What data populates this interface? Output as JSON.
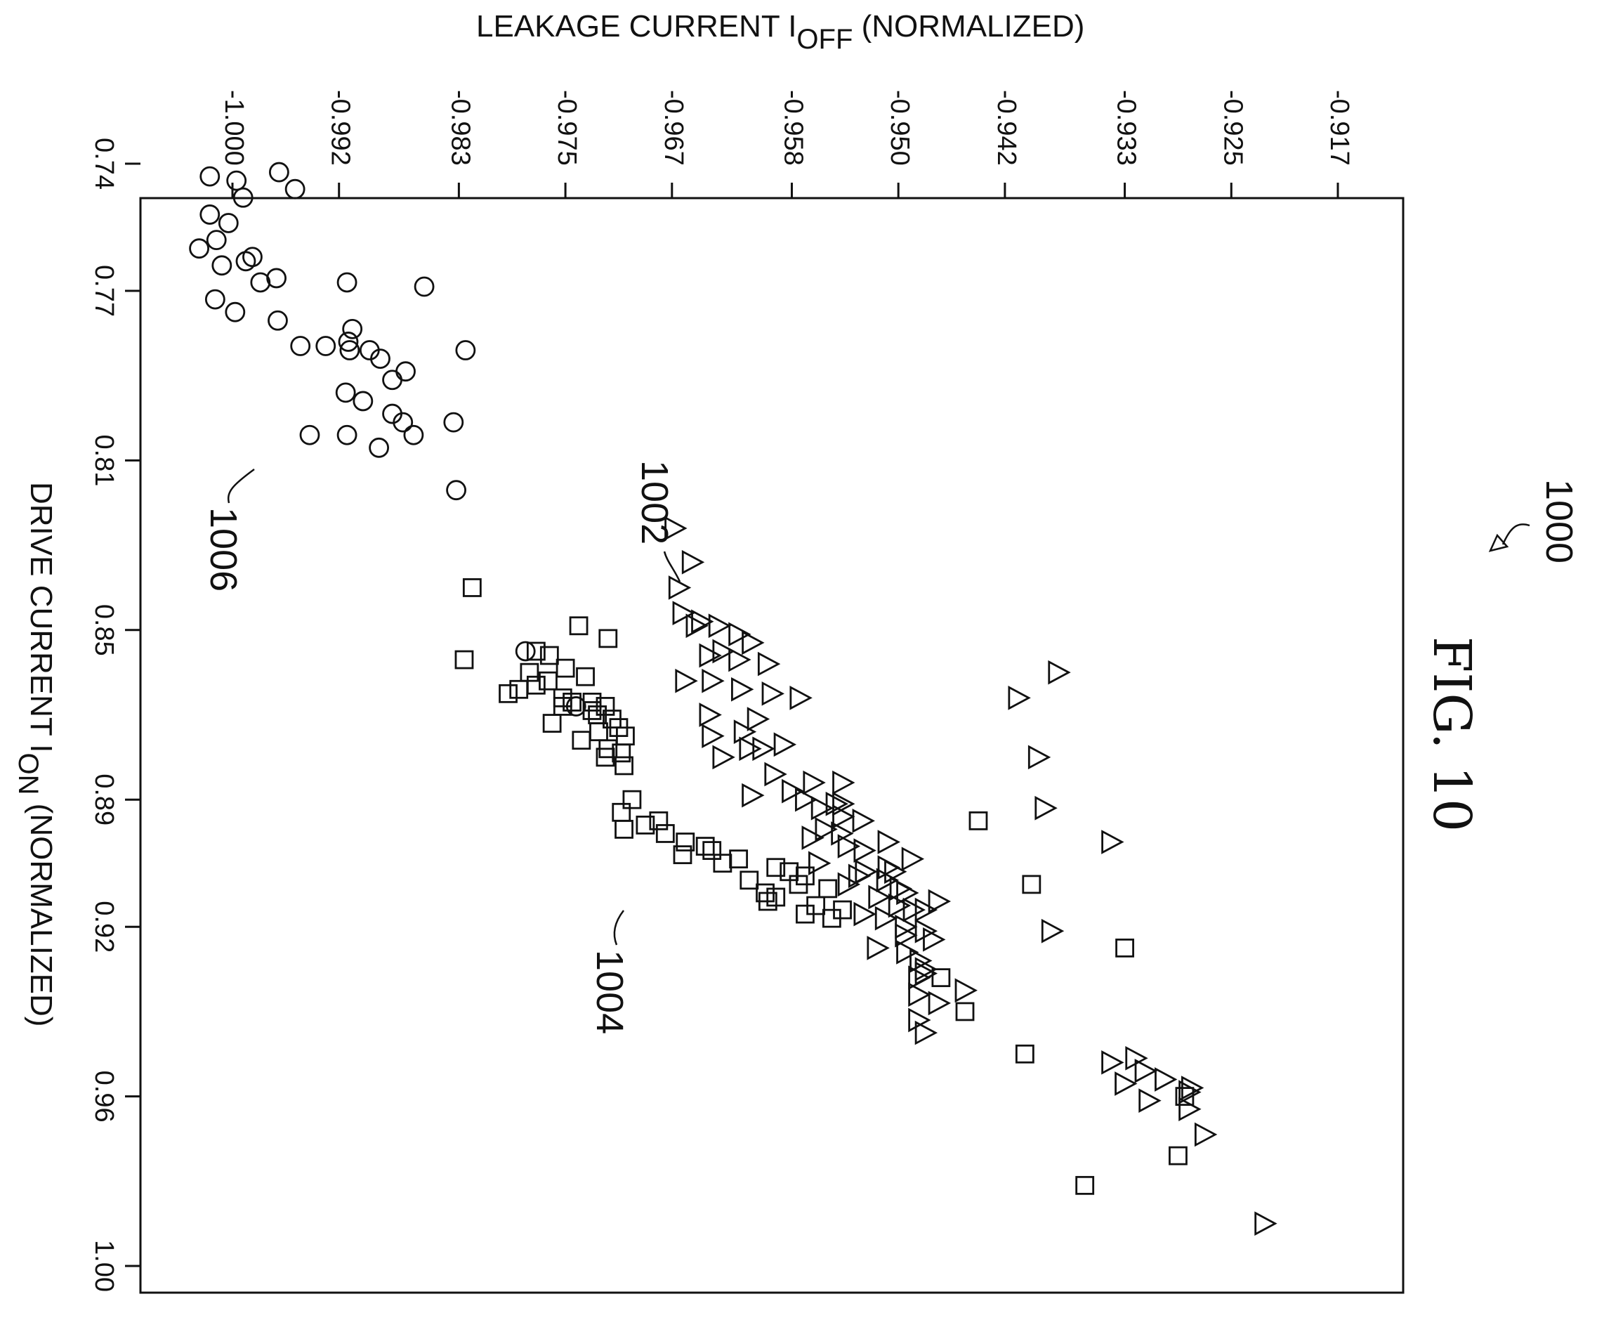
{
  "figure": {
    "label": "FIG. 10",
    "ref_number": "1000"
  },
  "chart_data": {
    "type": "scatter",
    "title": "",
    "xlabel": "DRIVE CURRENT I",
    "xlabel_sub": "ON",
    "xlabel_suffix": " (NORMALIZED)",
    "ylabel": "LEAKAGE CURRENT I",
    "ylabel_sub": "OFF",
    "ylabel_suffix": " (NORMALIZED)",
    "xlim": [
      0.73,
      1.0
    ],
    "ylim": [
      -1.0,
      -0.917
    ],
    "x_ticks": [
      {
        "value": 0.74,
        "label": "0.74"
      },
      {
        "value": 0.77,
        "label": "0.77"
      },
      {
        "value": 0.81,
        "label": "0.81"
      },
      {
        "value": 0.85,
        "label": "0.85"
      },
      {
        "value": 0.89,
        "label": "0.89"
      },
      {
        "value": 0.92,
        "label": "0.92"
      },
      {
        "value": 0.96,
        "label": "0.96"
      },
      {
        "value": 1.0,
        "label": "1.00"
      }
    ],
    "y_ticks": [
      {
        "value": -1.0,
        "label": "-1.000"
      },
      {
        "value": -0.992,
        "label": "-0.992"
      },
      {
        "value": -0.983,
        "label": "-0.983"
      },
      {
        "value": -0.975,
        "label": "-0.975"
      },
      {
        "value": -0.967,
        "label": "-0.967"
      },
      {
        "value": -0.958,
        "label": "-0.958"
      },
      {
        "value": -0.95,
        "label": "-0.950"
      },
      {
        "value": -0.942,
        "label": "-0.942"
      },
      {
        "value": -0.933,
        "label": "-0.933"
      },
      {
        "value": -0.925,
        "label": "-0.925"
      },
      {
        "value": -0.917,
        "label": "-0.917"
      }
    ],
    "grid": false,
    "legend": "none",
    "series": [
      {
        "ref": "1002",
        "marker": "triangle",
        "points": [
          [
            0.826,
            -0.9668
          ],
          [
            0.834,
            -0.9655
          ],
          [
            0.84,
            -0.9665
          ],
          [
            0.846,
            -0.9662
          ],
          [
            0.848,
            -0.9648
          ],
          [
            0.849,
            -0.9635
          ],
          [
            0.849,
            -0.9652
          ],
          [
            0.851,
            -0.962
          ],
          [
            0.853,
            -0.961
          ],
          [
            0.855,
            -0.9632
          ],
          [
            0.856,
            -0.9642
          ],
          [
            0.857,
            -0.962
          ],
          [
            0.858,
            -0.9598
          ],
          [
            0.862,
            -0.966
          ],
          [
            0.862,
            -0.964
          ],
          [
            0.864,
            -0.9618
          ],
          [
            0.865,
            -0.9595
          ],
          [
            0.866,
            -0.9574
          ],
          [
            0.87,
            -0.9642
          ],
          [
            0.871,
            -0.9606
          ],
          [
            0.874,
            -0.9616
          ],
          [
            0.875,
            -0.964
          ],
          [
            0.877,
            -0.9586
          ],
          [
            0.878,
            -0.9602
          ],
          [
            0.878,
            -0.9612
          ],
          [
            0.88,
            -0.9632
          ],
          [
            0.884,
            -0.9593
          ],
          [
            0.886,
            -0.9564
          ],
          [
            0.886,
            -0.9542
          ],
          [
            0.888,
            -0.958
          ],
          [
            0.889,
            -0.961
          ],
          [
            0.89,
            -0.957
          ],
          [
            0.891,
            -0.9547
          ],
          [
            0.891,
            -0.9542
          ],
          [
            0.892,
            -0.9558
          ],
          [
            0.894,
            -0.9542
          ],
          [
            0.895,
            -0.9527
          ],
          [
            0.897,
            -0.9555
          ],
          [
            0.898,
            -0.9543
          ],
          [
            0.899,
            -0.9565
          ],
          [
            0.9,
            -0.9508
          ],
          [
            0.901,
            -0.9538
          ],
          [
            0.902,
            -0.9526
          ],
          [
            0.904,
            -0.949
          ],
          [
            0.905,
            -0.956
          ],
          [
            0.906,
            -0.9508
          ],
          [
            0.907,
            -0.9525
          ],
          [
            0.907,
            -0.9503
          ],
          [
            0.908,
            -0.953
          ],
          [
            0.909,
            -0.9509
          ],
          [
            0.91,
            -0.9538
          ],
          [
            0.911,
            -0.9499
          ],
          [
            0.912,
            -0.9494
          ],
          [
            0.913,
            -0.9515
          ],
          [
            0.914,
            -0.947
          ],
          [
            0.915,
            -0.95
          ],
          [
            0.916,
            -0.948
          ],
          [
            0.916,
            -0.9489
          ],
          [
            0.917,
            -0.9526
          ],
          [
            0.918,
            -0.951
          ],
          [
            0.92,
            -0.9495
          ],
          [
            0.921,
            -0.948
          ],
          [
            0.922,
            -0.9495
          ],
          [
            0.923,
            -0.9474
          ],
          [
            0.925,
            -0.9516
          ],
          [
            0.926,
            -0.9494
          ],
          [
            0.928,
            -0.9484
          ],
          [
            0.93,
            -0.948
          ],
          [
            0.931,
            -0.948
          ],
          [
            0.932,
            -0.9485
          ],
          [
            0.935,
            -0.945
          ],
          [
            0.936,
            -0.9485
          ],
          [
            0.938,
            -0.947
          ],
          [
            0.942,
            -0.9485
          ],
          [
            0.945,
            -0.948
          ],
          [
            0.86,
            -0.938
          ],
          [
            0.866,
            -0.941
          ],
          [
            0.88,
            -0.9395
          ],
          [
            0.892,
            -0.939
          ],
          [
            0.9,
            -0.934
          ],
          [
            0.921,
            -0.9385
          ],
          [
            0.951,
            -0.9322
          ],
          [
            0.952,
            -0.934
          ],
          [
            0.954,
            -0.9315
          ],
          [
            0.956,
            -0.93
          ],
          [
            0.957,
            -0.933
          ],
          [
            0.958,
            -0.928
          ],
          [
            0.959,
            -0.9282
          ],
          [
            0.961,
            -0.9312
          ],
          [
            0.963,
            -0.9282
          ],
          [
            0.969,
            -0.927
          ],
          [
            0.99,
            -0.9225
          ]
        ]
      },
      {
        "ref": "1004",
        "marker": "square",
        "points": [
          [
            0.84,
            -0.982
          ],
          [
            0.849,
            -0.974
          ],
          [
            0.852,
            -0.9718
          ],
          [
            0.855,
            -0.9772
          ],
          [
            0.856,
            -0.9762
          ],
          [
            0.857,
            -0.9826
          ],
          [
            0.859,
            -0.975
          ],
          [
            0.86,
            -0.9777
          ],
          [
            0.861,
            -0.9735
          ],
          [
            0.862,
            -0.9763
          ],
          [
            0.863,
            -0.9772
          ],
          [
            0.864,
            -0.9785
          ],
          [
            0.865,
            -0.9793
          ],
          [
            0.866,
            -0.9752
          ],
          [
            0.867,
            -0.9745
          ],
          [
            0.867,
            -0.973
          ],
          [
            0.868,
            -0.972
          ],
          [
            0.868,
            -0.9752
          ],
          [
            0.869,
            -0.973
          ],
          [
            0.87,
            -0.9726
          ],
          [
            0.871,
            -0.9715
          ],
          [
            0.872,
            -0.976
          ],
          [
            0.873,
            -0.971
          ],
          [
            0.874,
            -0.9725
          ],
          [
            0.875,
            -0.9705
          ],
          [
            0.876,
            -0.9738
          ],
          [
            0.878,
            -0.9718
          ],
          [
            0.879,
            -0.9708
          ],
          [
            0.88,
            -0.972
          ],
          [
            0.882,
            -0.9706
          ],
          [
            0.89,
            -0.97
          ],
          [
            0.893,
            -0.9708
          ],
          [
            0.895,
            -0.968
          ],
          [
            0.896,
            -0.969
          ],
          [
            0.897,
            -0.9706
          ],
          [
            0.898,
            -0.9675
          ],
          [
            0.9,
            -0.966
          ],
          [
            0.901,
            -0.9645
          ],
          [
            0.902,
            -0.964
          ],
          [
            0.903,
            -0.9662
          ],
          [
            0.904,
            -0.962
          ],
          [
            0.905,
            -0.9632
          ],
          [
            0.906,
            -0.9592
          ],
          [
            0.907,
            -0.9582
          ],
          [
            0.908,
            -0.957
          ],
          [
            0.909,
            -0.9612
          ],
          [
            0.91,
            -0.9575
          ],
          [
            0.911,
            -0.9553
          ],
          [
            0.912,
            -0.96
          ],
          [
            0.913,
            -0.9592
          ],
          [
            0.914,
            -0.9598
          ],
          [
            0.915,
            -0.9562
          ],
          [
            0.916,
            -0.9542
          ],
          [
            0.917,
            -0.957
          ],
          [
            0.918,
            -0.955
          ],
          [
            0.895,
            -0.944
          ],
          [
            0.91,
            -0.94
          ],
          [
            0.925,
            -0.933
          ],
          [
            0.932,
            -0.9468
          ],
          [
            0.94,
            -0.945
          ],
          [
            0.95,
            -0.9405
          ],
          [
            0.96,
            -0.9285
          ],
          [
            0.974,
            -0.929
          ],
          [
            0.981,
            -0.936
          ]
        ]
      },
      {
        "ref": "1006",
        "marker": "circle",
        "points": [
          [
            0.743,
            -1.0017
          ],
          [
            0.744,
            -0.9997
          ],
          [
            0.742,
            -0.9965
          ],
          [
            0.746,
            -0.9953
          ],
          [
            0.748,
            -0.9992
          ],
          [
            0.752,
            -1.0017
          ],
          [
            0.754,
            -1.0003
          ],
          [
            0.758,
            -1.0012
          ],
          [
            0.76,
            -1.0025
          ],
          [
            0.762,
            -0.9985
          ],
          [
            0.763,
            -0.999
          ],
          [
            0.764,
            -1.0008
          ],
          [
            0.767,
            -0.9967
          ],
          [
            0.768,
            -0.9979
          ],
          [
            0.768,
            -0.9914
          ],
          [
            0.769,
            -0.9856
          ],
          [
            0.772,
            -1.0013
          ],
          [
            0.775,
            -0.9998
          ],
          [
            0.777,
            -0.9966
          ],
          [
            0.779,
            -0.991
          ],
          [
            0.782,
            -0.9913
          ],
          [
            0.783,
            -0.993
          ],
          [
            0.783,
            -0.9949
          ],
          [
            0.784,
            -0.9897
          ],
          [
            0.784,
            -0.9912
          ],
          [
            0.784,
            -0.9825
          ],
          [
            0.786,
            -0.9889
          ],
          [
            0.789,
            -0.987
          ],
          [
            0.791,
            -0.988
          ],
          [
            0.794,
            -0.9915
          ],
          [
            0.796,
            -0.9902
          ],
          [
            0.799,
            -0.988
          ],
          [
            0.801,
            -0.9872
          ],
          [
            0.801,
            -0.9834
          ],
          [
            0.804,
            -0.9914
          ],
          [
            0.804,
            -0.9942
          ],
          [
            0.804,
            -0.9864
          ],
          [
            0.807,
            -0.989
          ],
          [
            0.817,
            -0.9832
          ],
          [
            0.855,
            -0.978
          ],
          [
            0.868,
            -0.9742
          ]
        ]
      }
    ],
    "annotations": [
      {
        "text": "1002",
        "target_series": "1002"
      },
      {
        "text": "1004",
        "target_series": "1004"
      },
      {
        "text": "1006",
        "target_series": "1006"
      }
    ]
  }
}
